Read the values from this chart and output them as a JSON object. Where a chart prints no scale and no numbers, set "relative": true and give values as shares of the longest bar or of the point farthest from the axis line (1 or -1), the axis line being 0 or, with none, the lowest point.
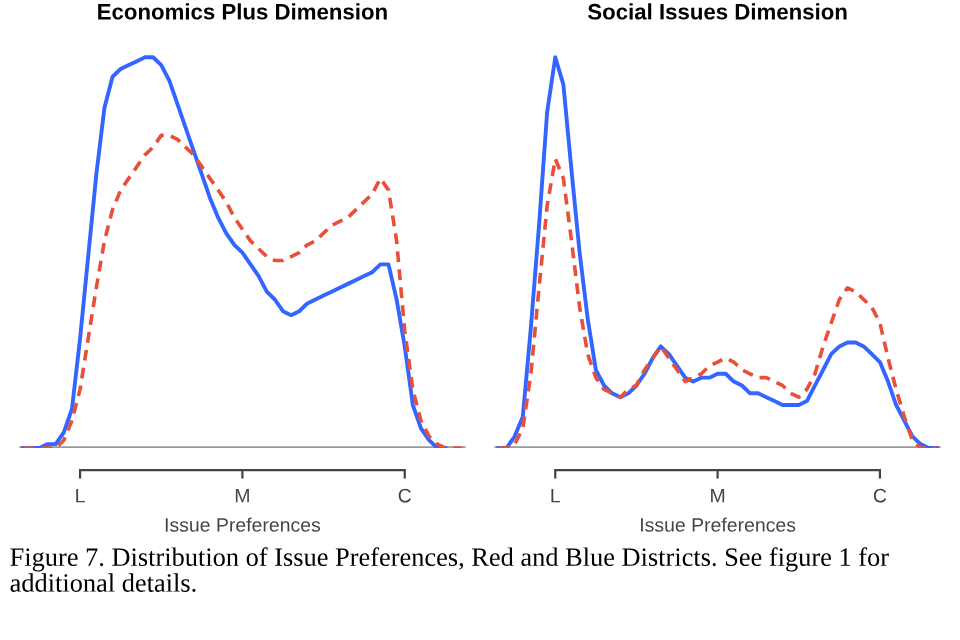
{
  "chart_data": [
    {
      "type": "line",
      "title": "Economics Plus Dimension",
      "xlabel": "Issue Preferences",
      "relative": true,
      "grid": false,
      "legend": false,
      "marker": "none",
      "tick_labels": "x",
      "categories": [
        null,
        null,
        null,
        null,
        null,
        null,
        null,
        "L",
        null,
        null,
        null,
        null,
        null,
        null,
        null,
        null,
        null,
        null,
        null,
        null,
        null,
        null,
        null,
        null,
        null,
        null,
        null,
        "M",
        null,
        null,
        null,
        null,
        null,
        null,
        null,
        null,
        null,
        null,
        null,
        null,
        null,
        null,
        null,
        null,
        null,
        null,
        null,
        "C",
        null,
        null,
        null,
        null,
        null,
        null,
        null
      ],
      "annotations": [
        "Figure 7. Distribution of Issue Preferences, Red and Blue Districts. See figure 1 for additional details."
      ],
      "series": [
        {
          "color": "#3366ff",
          "line_style": "solid",
          "values": [
            0,
            0,
            0,
            0.01,
            0.01,
            0.04,
            0.1,
            0.28,
            0.49,
            0.7,
            0.87,
            0.95,
            0.97,
            0.98,
            0.99,
            1.0,
            1.0,
            0.98,
            0.94,
            0.88,
            0.82,
            0.76,
            0.7,
            0.64,
            0.59,
            0.55,
            0.52,
            0.5,
            0.47,
            0.44,
            0.4,
            0.38,
            0.35,
            0.34,
            0.35,
            0.37,
            0.38,
            0.39,
            0.4,
            0.41,
            0.42,
            0.43,
            0.44,
            0.45,
            0.47,
            0.47,
            0.38,
            0.26,
            0.11,
            0.05,
            0.02,
            0,
            0,
            null,
            null
          ]
        },
        {
          "color": "#e8503a",
          "line_style": "dashed",
          "values": [
            0,
            0,
            0,
            0,
            0,
            0.02,
            0.07,
            0.15,
            0.28,
            0.41,
            0.53,
            0.61,
            0.66,
            0.69,
            0.72,
            0.75,
            0.77,
            0.8,
            0.8,
            0.79,
            0.77,
            0.75,
            0.72,
            0.69,
            0.66,
            0.63,
            0.59,
            0.56,
            0.53,
            0.51,
            0.49,
            0.48,
            0.48,
            0.49,
            0.5,
            0.52,
            0.53,
            0.55,
            0.57,
            0.58,
            0.59,
            0.61,
            0.63,
            0.65,
            0.69,
            0.66,
            0.53,
            0.3,
            0.15,
            0.07,
            0.03,
            0.01,
            0,
            0,
            0
          ]
        }
      ]
    },
    {
      "type": "line",
      "title": "Social Issues Dimension",
      "xlabel": "Issue Preferences",
      "relative": true,
      "grid": false,
      "legend": false,
      "marker": "none",
      "tick_labels": "x",
      "categories": [
        null,
        null,
        null,
        null,
        null,
        null,
        null,
        "L",
        null,
        null,
        null,
        null,
        null,
        null,
        null,
        null,
        null,
        null,
        null,
        null,
        null,
        null,
        null,
        null,
        null,
        null,
        null,
        "M",
        null,
        null,
        null,
        null,
        null,
        null,
        null,
        null,
        null,
        null,
        null,
        null,
        null,
        null,
        null,
        null,
        null,
        null,
        null,
        "C",
        null,
        null,
        null,
        null,
        null,
        null,
        null
      ],
      "series": [
        {
          "color": "#3366ff",
          "line_style": "solid",
          "values": [
            0,
            0,
            0.03,
            0.08,
            0.31,
            0.57,
            0.86,
            1.0,
            0.93,
            0.71,
            0.5,
            0.33,
            0.2,
            0.16,
            0.14,
            0.13,
            0.14,
            0.16,
            0.19,
            0.23,
            0.26,
            0.24,
            0.21,
            0.18,
            0.17,
            0.18,
            0.18,
            0.19,
            0.19,
            0.17,
            0.16,
            0.14,
            0.14,
            0.13,
            0.12,
            0.11,
            0.11,
            0.11,
            0.12,
            0.16,
            0.2,
            0.24,
            0.26,
            0.27,
            0.27,
            0.26,
            0.24,
            0.22,
            0.17,
            0.11,
            0.07,
            0.03,
            0.01,
            0,
            0
          ]
        },
        {
          "color": "#e8503a",
          "line_style": "dashed",
          "values": [
            0,
            0,
            0.01,
            0.05,
            0.19,
            0.41,
            0.62,
            0.74,
            0.69,
            0.53,
            0.36,
            0.24,
            0.18,
            0.15,
            0.14,
            0.13,
            0.15,
            0.16,
            0.2,
            0.23,
            0.26,
            0.23,
            0.2,
            0.17,
            0.18,
            0.19,
            0.21,
            0.22,
            0.23,
            0.22,
            0.2,
            0.19,
            0.18,
            0.18,
            0.17,
            0.16,
            0.14,
            0.13,
            0.15,
            0.19,
            0.26,
            0.32,
            0.38,
            0.41,
            0.4,
            0.38,
            0.36,
            0.32,
            0.23,
            0.15,
            0.08,
            0.02,
            0,
            0,
            0
          ]
        }
      ]
    }
  ]
}
